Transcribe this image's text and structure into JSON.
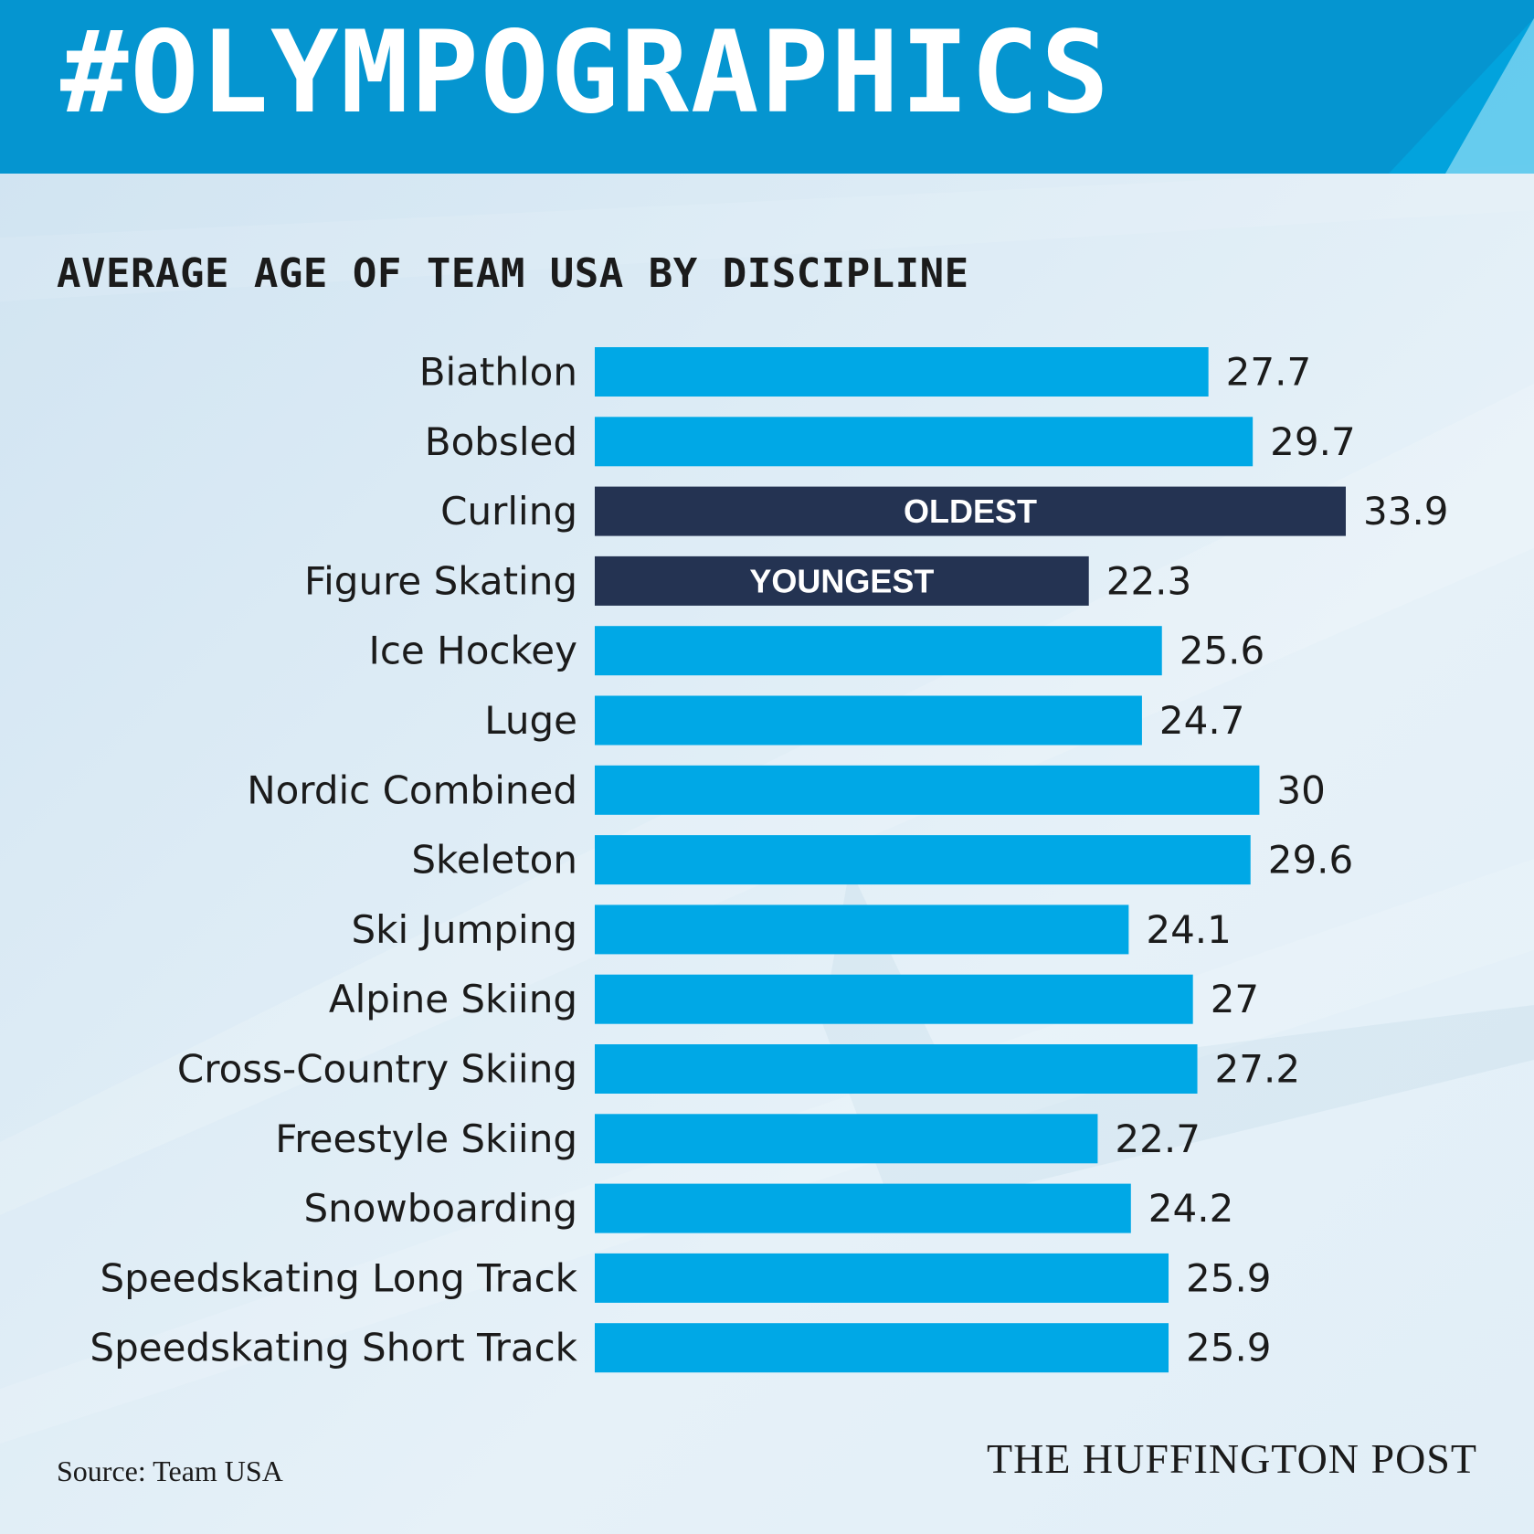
{
  "header": {
    "banner_text": "#OLYMPOGRAPHICS",
    "banner_color": "#0595d0",
    "banner_accent_color": "#00aee8"
  },
  "footer": {
    "source": "Source: Team USA",
    "publisher": "THE HUFFINGTON POST"
  },
  "colors": {
    "bar_default": "#00a8e6",
    "bar_highlight": "#243352",
    "label_text": "#1b1b1b",
    "highlight_label_text": "#ffffff"
  },
  "chart_data": {
    "type": "bar",
    "orientation": "horizontal",
    "title": "AVERAGE AGE OF TEAM USA BY DISCIPLINE",
    "xlabel": "",
    "ylabel": "",
    "grid": false,
    "xlim": [
      0,
      33.9
    ],
    "categories": [
      "Biathlon",
      "Bobsled",
      "Curling",
      "Figure Skating",
      "Ice Hockey",
      "Luge",
      "Nordic Combined",
      "Skeleton",
      "Ski Jumping",
      "Alpine Skiing",
      "Cross-Country Skiing",
      "Freestyle Skiing",
      "Snowboarding",
      "Speedskating Long Track",
      "Speedskating Short Track"
    ],
    "values": [
      27.7,
      29.7,
      33.9,
      22.3,
      25.6,
      24.7,
      30,
      29.6,
      24.1,
      27,
      27.2,
      22.7,
      24.2,
      25.9,
      25.9
    ],
    "value_labels": [
      "27.7",
      "29.7",
      "33.9",
      "22.3",
      "25.6",
      "24.7",
      "30",
      "29.6",
      "24.1",
      "27",
      "27.2",
      "22.7",
      "24.2",
      "25.9",
      "25.9"
    ],
    "annotations": [
      {
        "category": "Curling",
        "text": "OLDEST"
      },
      {
        "category": "Figure Skating",
        "text": "YOUNGEST"
      }
    ]
  }
}
